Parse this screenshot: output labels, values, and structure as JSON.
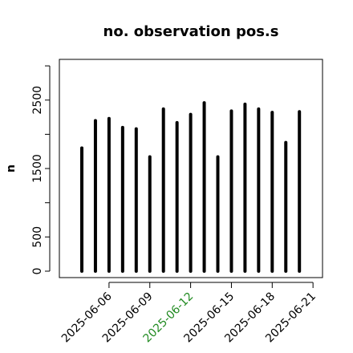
{
  "chart_data": {
    "type": "bar",
    "title": "no. observation pos.s",
    "xlabel": "",
    "ylabel": "n",
    "x": [
      "2025-06-04",
      "2025-06-05",
      "2025-06-06",
      "2025-06-07",
      "2025-06-08",
      "2025-06-09",
      "2025-06-10",
      "2025-06-11",
      "2025-06-12",
      "2025-06-13",
      "2025-06-14",
      "2025-06-15",
      "2025-06-16",
      "2025-06-17",
      "2025-06-18",
      "2025-06-19",
      "2025-06-20",
      "2025-06-21"
    ],
    "values": [
      1800,
      2200,
      2230,
      2100,
      2080,
      1670,
      2370,
      2170,
      2290,
      2460,
      1670,
      2340,
      2440,
      2370,
      2320,
      1880,
      2330,
      0
    ],
    "ylim": [
      0,
      3100
    ],
    "yticks": [
      "0",
      "500",
      "1500",
      "2500"
    ],
    "ytick_values": [
      0,
      500,
      1500,
      2500
    ],
    "yminor_ticks": [
      1000,
      2000,
      3000
    ],
    "xticks": [
      {
        "label": "2025-06-06",
        "color": "#000000"
      },
      {
        "label": "2025-06-09",
        "color": "#000000"
      },
      {
        "label": "2025-06-12",
        "color": "#228B22"
      },
      {
        "label": "2025-06-15",
        "color": "#000000"
      },
      {
        "label": "2025-06-18",
        "color": "#000000"
      },
      {
        "label": "2025-06-21",
        "color": "#000000"
      }
    ],
    "grid": false,
    "legend": "none",
    "bar_color": "#000000"
  }
}
